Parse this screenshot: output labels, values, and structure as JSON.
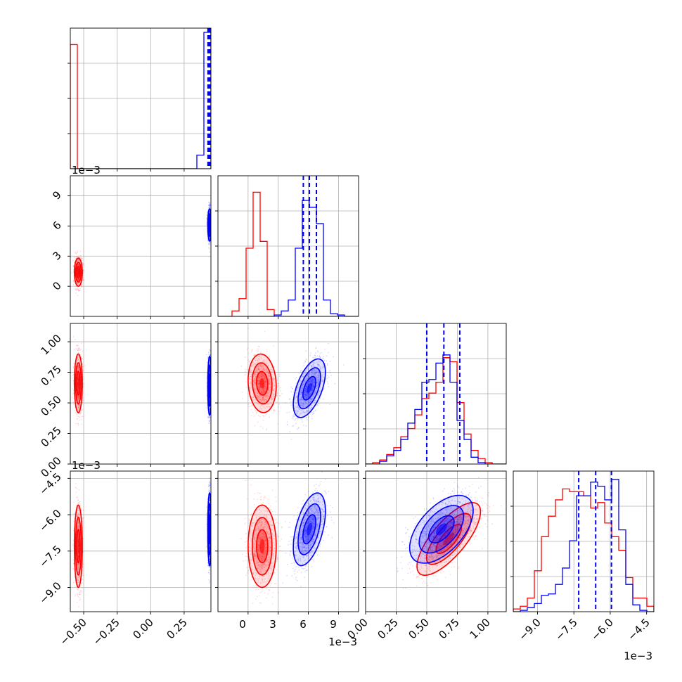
{
  "chart_data": {
    "type": "corner",
    "colors": {
      "red": "#ff0000",
      "blue": "#0000ff"
    },
    "series": [
      {
        "color": "#ff0000"
      },
      {
        "color": "#0000ff"
      }
    ],
    "grid": true,
    "params": [
      {
        "range": [
          -0.6,
          0.45
        ],
        "ticks": [
          -0.5,
          -0.25,
          0.0,
          0.25
        ],
        "tick_labels": [
          "−0.50",
          "−0.25",
          "0.00",
          "0.25"
        ],
        "offset": ""
      },
      {
        "range": [
          -3.0,
          11.0
        ],
        "ticks": [
          0,
          3,
          6,
          9
        ],
        "tick_labels": [
          "0",
          "3",
          "6",
          "9"
        ],
        "offset": "1e−3"
      },
      {
        "range": [
          0.0,
          1.15
        ],
        "ticks": [
          0.0,
          0.25,
          0.5,
          0.75,
          1.0
        ],
        "tick_labels": [
          "0.00",
          "0.25",
          "0.50",
          "0.75",
          "1.00"
        ],
        "offset": ""
      },
      {
        "range": [
          -10.0,
          -4.2
        ],
        "ticks": [
          -9.0,
          -7.5,
          -6.0,
          -4.5
        ],
        "tick_labels": [
          "−9.0",
          "−7.5",
          "−6.0",
          "−4.5"
        ],
        "offset": "1e−3"
      }
    ],
    "histograms": [
      {
        "param": 0,
        "bins": [
          -0.6,
          -0.5475,
          -0.495,
          -0.4425,
          -0.39,
          -0.3375,
          -0.285,
          -0.2325,
          -0.18,
          -0.1275,
          -0.075,
          -0.0225,
          0.03,
          0.0825,
          0.135,
          0.1875,
          0.24,
          0.2925,
          0.345,
          0.3975,
          0.45
        ],
        "red": [
          0.91,
          0,
          0,
          0,
          0,
          0,
          0,
          0,
          0,
          0,
          0,
          0,
          0,
          0,
          0,
          0,
          0,
          0,
          0,
          0
        ],
        "blue": [
          0,
          0,
          0,
          0,
          0,
          0,
          0,
          0,
          0,
          0,
          0,
          0,
          0,
          0,
          0,
          0,
          0,
          0,
          0.1,
          1.0
        ],
        "quantiles": [
          0.428,
          0.435,
          0.442
        ]
      },
      {
        "param": 1,
        "bins": [
          -3.0,
          -2.3,
          -1.6,
          -0.9,
          -0.2,
          0.5,
          1.2,
          1.9,
          2.6,
          3.3,
          4.0,
          4.7,
          5.4,
          6.1,
          6.8,
          7.5,
          8.2,
          8.9,
          9.6,
          10.3,
          11.0
        ],
        "red": [
          0,
          0,
          0.04,
          0.13,
          0.5,
          0.91,
          0.55,
          0.05,
          0,
          0,
          0,
          0,
          0,
          0,
          0,
          0,
          0,
          0,
          0,
          0
        ],
        "blue": [
          0,
          0,
          0,
          0,
          0,
          0,
          0,
          0,
          0.01,
          0.04,
          0.12,
          0.5,
          0.85,
          0.8,
          0.68,
          0.12,
          0.02,
          0.01,
          0,
          0
        ],
        "quantiles": [
          5.5,
          6.1,
          6.8
        ]
      },
      {
        "param": 2,
        "bins": [
          0.0,
          0.0575,
          0.115,
          0.1725,
          0.23,
          0.2875,
          0.345,
          0.4025,
          0.46,
          0.5175,
          0.575,
          0.6325,
          0.69,
          0.7475,
          0.805,
          0.8625,
          0.92,
          0.9775,
          1.035,
          1.0925,
          1.15
        ],
        "red": [
          0,
          0.01,
          0.03,
          0.07,
          0.12,
          0.2,
          0.26,
          0.36,
          0.48,
          0.52,
          0.6,
          0.78,
          0.75,
          0.45,
          0.22,
          0.1,
          0.04,
          0.01,
          0,
          0
        ],
        "blue": [
          0,
          0,
          0.02,
          0.06,
          0.1,
          0.18,
          0.3,
          0.4,
          0.6,
          0.62,
          0.74,
          0.8,
          0.6,
          0.32,
          0.18,
          0.05,
          0.01,
          0,
          0,
          0
        ],
        "quantiles": [
          0.5,
          0.64,
          0.77
        ]
      },
      {
        "param": 3,
        "bins": [
          -10.0,
          -9.71,
          -9.42,
          -9.13,
          -8.84,
          -8.55,
          -8.26,
          -7.97,
          -7.68,
          -7.39,
          -7.1,
          -6.81,
          -6.52,
          -6.23,
          -5.94,
          -5.65,
          -5.36,
          -5.07,
          -4.78,
          -4.49,
          -4.2
        ],
        "red": [
          0.02,
          0.04,
          0.1,
          0.3,
          0.55,
          0.7,
          0.82,
          0.9,
          0.88,
          0.88,
          0.85,
          0.76,
          0.8,
          0.65,
          0.55,
          0.45,
          0.25,
          0.1,
          0.1,
          0.04
        ],
        "blue": [
          0,
          0.01,
          0.03,
          0.06,
          0.12,
          0.13,
          0.2,
          0.32,
          0.52,
          0.85,
          0.85,
          0.95,
          0.92,
          0.82,
          0.97,
          0.6,
          0.2,
          0.05,
          0.01,
          0
        ],
        "quantiles": [
          -7.3,
          -6.6,
          -5.95
        ]
      }
    ],
    "scatter_2d": [
      {
        "x_param": 0,
        "y_param": 1,
        "red": {
          "mean": [
            -0.54,
            1.4
          ],
          "sd": [
            0.015,
            0.7
          ],
          "rho": 0.0
        },
        "blue": {
          "mean": [
            0.44,
            6.1
          ],
          "sd": [
            0.007,
            0.8
          ],
          "rho": 0.0
        }
      },
      {
        "x_param": 0,
        "y_param": 2,
        "red": {
          "mean": [
            -0.54,
            0.66
          ],
          "sd": [
            0.015,
            0.12
          ],
          "rho": 0.0
        },
        "blue": {
          "mean": [
            0.44,
            0.64
          ],
          "sd": [
            0.007,
            0.12
          ],
          "rho": 0.0
        }
      },
      {
        "x_param": 1,
        "y_param": 2,
        "red": {
          "mean": [
            1.4,
            0.66
          ],
          "sd": [
            0.7,
            0.12
          ],
          "rho": -0.1
        },
        "blue": {
          "mean": [
            6.1,
            0.62
          ],
          "sd": [
            0.8,
            0.12
          ],
          "rho": 0.55
        }
      },
      {
        "x_param": 0,
        "y_param": 3,
        "red": {
          "mean": [
            -0.54,
            -7.3
          ],
          "sd": [
            0.015,
            0.85
          ],
          "rho": 0.0
        },
        "blue": {
          "mean": [
            0.44,
            -6.6
          ],
          "sd": [
            0.007,
            0.75
          ],
          "rho": 0.0
        }
      },
      {
        "x_param": 1,
        "y_param": 3,
        "red": {
          "mean": [
            1.4,
            -7.3
          ],
          "sd": [
            0.7,
            0.85
          ],
          "rho": 0.0
        },
        "blue": {
          "mean": [
            6.1,
            -6.6
          ],
          "sd": [
            0.8,
            0.75
          ],
          "rho": 0.5
        }
      },
      {
        "x_param": 2,
        "y_param": 3,
        "red": {
          "mean": [
            0.68,
            -7.0
          ],
          "sd": [
            0.13,
            0.75
          ],
          "rho": 0.75
        },
        "blue": {
          "mean": [
            0.62,
            -6.6
          ],
          "sd": [
            0.13,
            0.7
          ],
          "rho": 0.55
        }
      }
    ]
  }
}
